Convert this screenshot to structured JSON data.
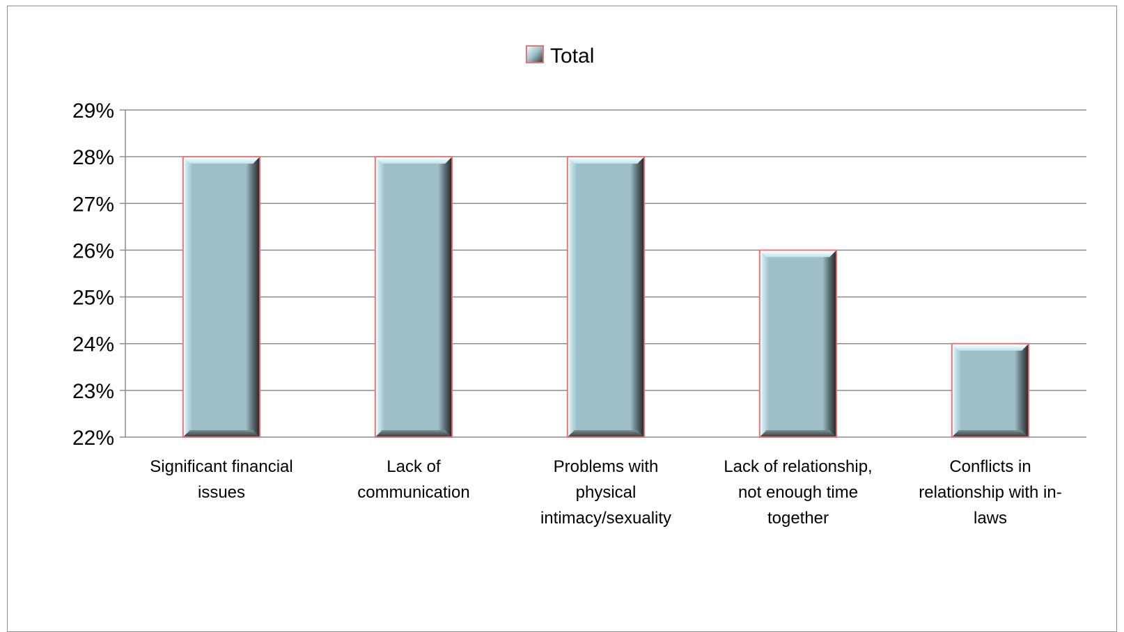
{
  "chart_data": {
    "type": "bar",
    "categories": [
      [
        "Significant financial",
        "issues"
      ],
      [
        "Lack of",
        "communication"
      ],
      [
        "Problems with",
        "physical",
        "intimacy/sexuality"
      ],
      [
        "Lack of relationship,",
        "not enough time",
        "together"
      ],
      [
        "Conflicts in",
        "relationship with in-",
        "laws"
      ]
    ],
    "series": [
      {
        "name": "Total",
        "values": [
          0.28,
          0.28,
          0.28,
          0.26,
          0.24
        ]
      }
    ],
    "ylim": [
      0.22,
      0.29
    ],
    "yticks": [
      "22%",
      "23%",
      "24%",
      "25%",
      "26%",
      "27%",
      "28%",
      "29%"
    ],
    "ytick_values": [
      0.22,
      0.23,
      0.24,
      0.25,
      0.26,
      0.27,
      0.28,
      0.29
    ],
    "grid": true,
    "legend": "top-center",
    "title": "",
    "xlabel": "",
    "ylabel": "",
    "colors": {
      "bar_face": "#9ebfc8",
      "bar_dark": "#2f3537",
      "bar_light": "#e8fbff",
      "bar_outline": "#e07878",
      "grid": "#8c8c8c"
    }
  }
}
